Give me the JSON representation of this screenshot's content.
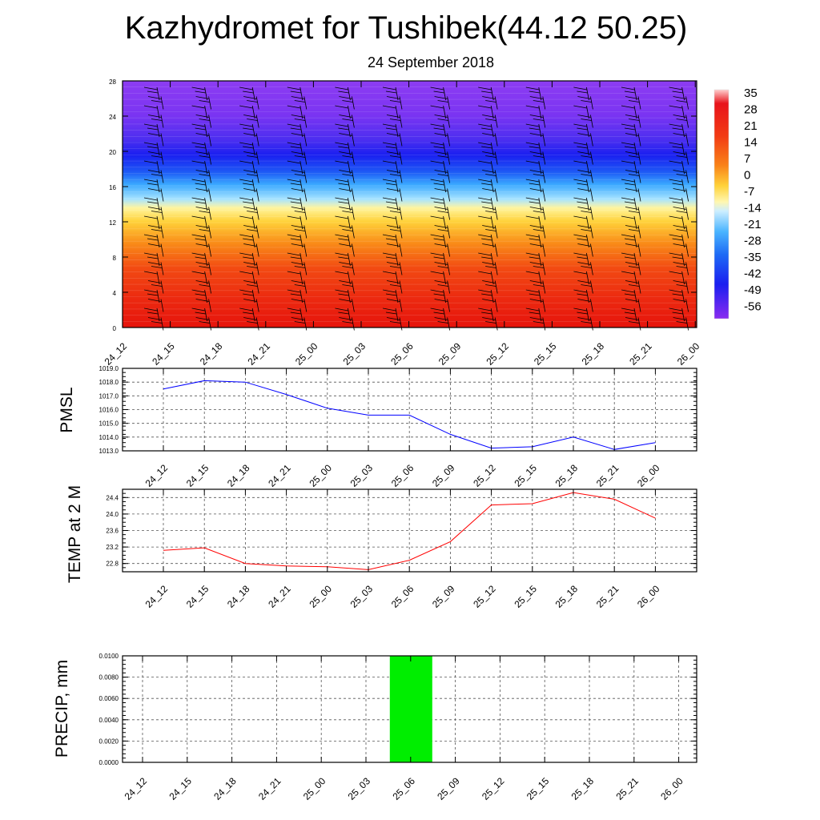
{
  "title": "Kazhydromet for Tushibek(44.12 50.25)",
  "subtitle": "24 September 2018",
  "time_labels": [
    "24_12",
    "24_15",
    "24_18",
    "24_21",
    "25_00",
    "25_03",
    "25_06",
    "25_09",
    "25_12",
    "25_15",
    "25_18",
    "25_21",
    "26_00"
  ],
  "colorbar": {
    "labels": [
      "35",
      "28",
      "21",
      "14",
      "7",
      "0",
      "-7",
      "-14",
      "-21",
      "-28",
      "-35",
      "-42",
      "-49",
      "-56"
    ],
    "colors": {
      "warm_bottom": "#e61a0f",
      "orange": "#fa7a14",
      "yellow": "#fff27a",
      "light_blue": "#7fd4ff",
      "blue": "#1a22f0",
      "purple": "#8a2cf0"
    }
  },
  "chart_data": [
    {
      "type": "heatmap",
      "title": "Kazhydromet for Tushibek(44.12 50.25)",
      "subtitle": "24 September 2018",
      "x": [
        "24_12",
        "24_15",
        "24_18",
        "24_21",
        "25_00",
        "25_03",
        "25_06",
        "25_09",
        "25_12",
        "25_15",
        "25_18",
        "25_21",
        "26_00"
      ],
      "ylim": [
        0,
        28
      ],
      "yticks": [
        0,
        4,
        8,
        12,
        16,
        20,
        24,
        28
      ],
      "colorbar_range": [
        -56,
        35
      ],
      "overlay": "wind barbs"
    },
    {
      "type": "line",
      "ylabel": "PMSL",
      "ylim": [
        1013.0,
        1019.0
      ],
      "yticks": [
        "1013.0",
        "1014.0",
        "1015.0",
        "1016.0",
        "1017.0",
        "1018.0",
        "1019.0"
      ],
      "color": "#0000ff",
      "x": [
        "24_12",
        "24_15",
        "24_18",
        "24_21",
        "25_00",
        "25_03",
        "25_06",
        "25_09",
        "25_12",
        "25_15",
        "25_18",
        "25_21",
        "26_00"
      ],
      "values": [
        1017.5,
        1018.1,
        1018.0,
        1017.1,
        1016.1,
        1015.6,
        1015.6,
        1014.2,
        1013.2,
        1013.3,
        1014.0,
        1013.1,
        1013.6
      ]
    },
    {
      "type": "line",
      "ylabel": "TEMP at 2 M",
      "ylim": [
        22.6,
        24.6
      ],
      "yticks": [
        "22.8",
        "23.2",
        "23.6",
        "24.0",
        "24.4"
      ],
      "color": "#ff0000",
      "x": [
        "24_12",
        "24_15",
        "24_18",
        "24_21",
        "25_00",
        "25_03",
        "25_06",
        "25_09",
        "25_12",
        "25_15",
        "25_18",
        "25_21",
        "26_00"
      ],
      "values": [
        23.12,
        23.18,
        22.8,
        22.74,
        22.72,
        22.65,
        22.88,
        23.33,
        24.22,
        24.25,
        24.52,
        24.36,
        23.9
      ]
    },
    {
      "type": "bar",
      "ylabel": "PRECIP, mm",
      "ylim": [
        0,
        0.01
      ],
      "yticks": [
        "0.0000",
        "0.0020",
        "0.0040",
        "0.0060",
        "0.0080",
        "0.0100"
      ],
      "color": "#00ee00",
      "x": [
        "24_12",
        "24_15",
        "24_18",
        "24_21",
        "25_00",
        "25_03",
        "25_06",
        "25_09",
        "25_12",
        "25_15",
        "25_18",
        "25_21",
        "26_00"
      ],
      "values": [
        0,
        0,
        0,
        0,
        0,
        0,
        0.01,
        0,
        0,
        0,
        0,
        0,
        0
      ]
    }
  ]
}
